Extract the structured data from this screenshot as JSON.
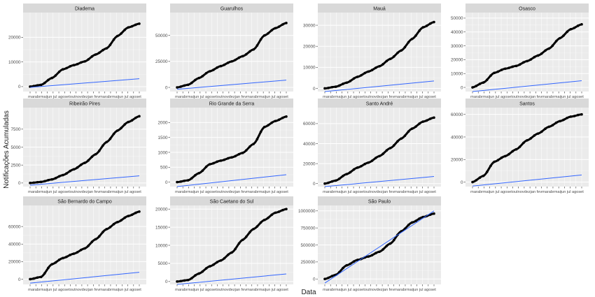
{
  "figure": {
    "xlabel": "Data",
    "ylabel": "Notificações Acumuladas"
  },
  "colors": {
    "panel_bg": "#ebebeb",
    "strip_bg": "#d9d9d9",
    "grid_major": "#ffffff",
    "grid_minor": "#f4f4f4",
    "points": "#000000",
    "fit": "#3366ff",
    "text": "#1a1a1a",
    "ticktext": "#4d4d4d"
  },
  "chart_data": [
    {
      "type": "scatter",
      "title": "Diadema",
      "ylim": [
        -2000,
        30000
      ],
      "yticks": [
        0,
        10000,
        20000
      ],
      "yticklabels": [
        "0",
        "10000",
        "20000"
      ],
      "x": [
        0,
        0.1,
        0.2,
        0.3,
        0.4,
        0.5,
        0.6,
        0.7,
        0.8,
        0.9,
        1
      ],
      "values": [
        0,
        700,
        3500,
        7000,
        8700,
        10200,
        13000,
        15500,
        20500,
        24000,
        25500
      ],
      "fit": [
        -300,
        3200
      ]
    },
    {
      "type": "scatter",
      "title": "Guarulhos",
      "ylim": [
        -4000,
        72000
      ],
      "yticks": [
        0,
        25000,
        50000
      ],
      "yticklabels": [
        "0",
        "25000",
        "50000"
      ],
      "x": [
        0,
        0.1,
        0.2,
        0.3,
        0.4,
        0.5,
        0.6,
        0.7,
        0.8,
        0.9,
        1
      ],
      "values": [
        0,
        2500,
        9000,
        15500,
        20500,
        25000,
        30000,
        36500,
        50000,
        57000,
        62000
      ],
      "fit": [
        -1800,
        7000
      ]
    },
    {
      "type": "scatter",
      "title": "Mauá",
      "ylim": [
        -1500,
        36000
      ],
      "yticks": [
        0,
        10000,
        20000,
        30000
      ],
      "yticklabels": [
        "0",
        "10000",
        "20000",
        "30000"
      ],
      "x": [
        0,
        0.1,
        0.2,
        0.3,
        0.4,
        0.5,
        0.6,
        0.7,
        0.8,
        0.9,
        1
      ],
      "values": [
        0,
        800,
        2700,
        5500,
        8000,
        10500,
        14000,
        18000,
        23500,
        29000,
        31500
      ],
      "fit": [
        -1500,
        3500
      ]
    },
    {
      "type": "scatter",
      "title": "Osasco",
      "ylim": [
        -3000,
        54000
      ],
      "yticks": [
        0,
        10000,
        20000,
        30000,
        40000,
        50000
      ],
      "yticklabels": [
        "0",
        "10000",
        "20000",
        "30000",
        "40000",
        "50000"
      ],
      "x": [
        0,
        0.1,
        0.2,
        0.3,
        0.4,
        0.5,
        0.6,
        0.7,
        0.8,
        0.9,
        1
      ],
      "values": [
        0,
        3500,
        10500,
        13500,
        15500,
        19000,
        23000,
        28000,
        35500,
        42000,
        45500
      ],
      "fit": [
        -3000,
        4800
      ]
    },
    {
      "type": "scatter",
      "title": "Ribeirão Pires",
      "ylim": [
        -500,
        10500
      ],
      "yticks": [
        0,
        2500,
        5000,
        7500
      ],
      "yticklabels": [
        "0",
        "2500",
        "5000",
        "7500"
      ],
      "x": [
        0,
        0.1,
        0.2,
        0.3,
        0.4,
        0.5,
        0.6,
        0.7,
        0.8,
        0.9,
        1
      ],
      "values": [
        0,
        150,
        500,
        1100,
        1900,
        2800,
        4000,
        5700,
        7300,
        8500,
        9300
      ],
      "fit": [
        -300,
        1000
      ]
    },
    {
      "type": "scatter",
      "title": "Rio Grande da Serra",
      "ylim": [
        -150,
        2500
      ],
      "yticks": [
        0,
        500,
        1000,
        1500,
        2000
      ],
      "yticklabels": [
        "0",
        "500",
        "1000",
        "1500",
        "2000"
      ],
      "x": [
        0,
        0.1,
        0.2,
        0.3,
        0.4,
        0.5,
        0.6,
        0.7,
        0.8,
        0.9,
        1
      ],
      "values": [
        0,
        60,
        300,
        600,
        720,
        830,
        980,
        1280,
        1850,
        2050,
        2200
      ],
      "fit": [
        -150,
        250
      ]
    },
    {
      "type": "scatter",
      "title": "Santo André",
      "ylim": [
        -3000,
        76000
      ],
      "yticks": [
        0,
        20000,
        40000,
        60000
      ],
      "yticklabels": [
        "0",
        "20000",
        "40000",
        "60000"
      ],
      "x": [
        0,
        0.1,
        0.2,
        0.3,
        0.4,
        0.5,
        0.6,
        0.7,
        0.8,
        0.9,
        1
      ],
      "values": [
        0,
        3000,
        9500,
        16000,
        21000,
        27500,
        35500,
        45000,
        55000,
        62000,
        66000
      ],
      "fit": [
        -3000,
        7100
      ]
    },
    {
      "type": "scatter",
      "title": "Santos",
      "ylim": [
        -4000,
        66000
      ],
      "yticks": [
        0,
        20000,
        40000,
        60000
      ],
      "yticklabels": [
        "0",
        "20000",
        "40000",
        "60000"
      ],
      "x": [
        0,
        0.1,
        0.2,
        0.3,
        0.4,
        0.5,
        0.6,
        0.7,
        0.8,
        0.9,
        1
      ],
      "values": [
        0,
        5500,
        18000,
        23000,
        29000,
        37000,
        43000,
        49000,
        54000,
        58000,
        60000
      ],
      "fit": [
        -3500,
        6300
      ]
    },
    {
      "type": "scatter",
      "title": "São Bernardo do Campo",
      "ylim": [
        -6000,
        84000
      ],
      "yticks": [
        0,
        20000,
        40000,
        60000
      ],
      "yticklabels": [
        "0",
        "20000",
        "40000",
        "60000"
      ],
      "x": [
        0,
        0.1,
        0.2,
        0.3,
        0.4,
        0.5,
        0.6,
        0.7,
        0.8,
        0.9,
        1
      ],
      "values": [
        0,
        2500,
        17000,
        24000,
        29000,
        35000,
        45500,
        57000,
        65000,
        72000,
        77000
      ],
      "fit": [
        -4500,
        7800
      ]
    },
    {
      "type": "scatter",
      "title": "São Caetano do Sul",
      "ylim": [
        -800,
        21000
      ],
      "yticks": [
        0,
        5000,
        10000,
        15000,
        20000
      ],
      "yticklabels": [
        "0",
        "5000",
        "10000",
        "15000",
        "20000"
      ],
      "x": [
        0,
        0.1,
        0.2,
        0.3,
        0.4,
        0.5,
        0.6,
        0.7,
        0.8,
        0.9,
        1
      ],
      "values": [
        0,
        400,
        2200,
        4200,
        5800,
        8000,
        11500,
        14500,
        17000,
        19000,
        20000
      ],
      "fit": [
        -800,
        2100
      ]
    },
    {
      "type": "scatter",
      "title": "São Paulo",
      "ylim": [
        -80000,
        1080000
      ],
      "yticks": [
        0,
        250000,
        500000,
        750000,
        1000000
      ],
      "yticklabels": [
        "0",
        "250000",
        "500000",
        "750000",
        "1000000"
      ],
      "x": [
        0,
        0.1,
        0.2,
        0.3,
        0.4,
        0.5,
        0.6,
        0.7,
        0.8,
        0.9,
        1
      ],
      "values": [
        0,
        60000,
        200000,
        280000,
        330000,
        400000,
        520000,
        700000,
        830000,
        910000,
        960000
      ],
      "fit": [
        -60000,
        1000000
      ]
    }
  ],
  "x_axis_text": "marabrmaijun jul agosetoutnovdezjan fevmarabrmaijun jul agoset"
}
